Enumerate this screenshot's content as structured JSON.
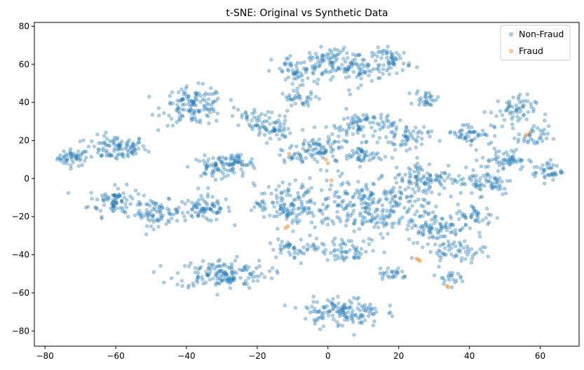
{
  "chart_data": {
    "type": "scatter",
    "title": "t-SNE: Original vs Synthetic Data",
    "xlabel": "",
    "ylabel": "",
    "xlim": [
      -83,
      71
    ],
    "ylim": [
      -88,
      82
    ],
    "xticks": [
      -80,
      -60,
      -40,
      -20,
      0,
      20,
      40,
      60
    ],
    "yticks": [
      -80,
      -60,
      -40,
      -20,
      0,
      20,
      40,
      60,
      80
    ],
    "xtick_labels": [
      "−80",
      "−60",
      "−40",
      "−20",
      "0",
      "20",
      "40",
      "60"
    ],
    "ytick_labels": [
      "−80",
      "−60",
      "−40",
      "−20",
      "0",
      "20",
      "40",
      "60",
      "80"
    ],
    "grid": false,
    "legend_position": "top-right",
    "series": [
      {
        "name": "Non-Fraud",
        "color": "#1f77b4",
        "opacity": 0.35,
        "clusters": [
          {
            "cx": -72,
            "cy": 11,
            "rx": 4,
            "ry": 4,
            "n": 50
          },
          {
            "cx": -60,
            "cy": 16,
            "rx": 8,
            "ry": 6,
            "n": 100
          },
          {
            "cx": -60,
            "cy": -12,
            "rx": 7,
            "ry": 7,
            "n": 85
          },
          {
            "cx": -48,
            "cy": -18,
            "rx": 6,
            "ry": 6,
            "n": 70
          },
          {
            "cx": -35,
            "cy": -16,
            "rx": 7,
            "ry": 6,
            "n": 80
          },
          {
            "cx": -38,
            "cy": 38,
            "rx": 8,
            "ry": 9,
            "n": 130
          },
          {
            "cx": -32,
            "cy": 6,
            "rx": 6,
            "ry": 5,
            "n": 60
          },
          {
            "cx": -26,
            "cy": 8,
            "rx": 5,
            "ry": 5,
            "n": 45
          },
          {
            "cx": -30,
            "cy": -50,
            "rx": 12,
            "ry": 7,
            "n": 150
          },
          {
            "cx": -22,
            "cy": 32,
            "rx": 5,
            "ry": 5,
            "n": 30
          },
          {
            "cx": -16,
            "cy": 26,
            "rx": 5,
            "ry": 6,
            "n": 55
          },
          {
            "cx": -8,
            "cy": 56,
            "rx": 7,
            "ry": 8,
            "n": 60
          },
          {
            "cx": 0,
            "cy": 62,
            "rx": 5,
            "ry": 6,
            "n": 60
          },
          {
            "cx": 8,
            "cy": 58,
            "rx": 7,
            "ry": 8,
            "n": 70
          },
          {
            "cx": 18,
            "cy": 62,
            "rx": 5,
            "ry": 6,
            "n": 60
          },
          {
            "cx": -8,
            "cy": 42,
            "rx": 5,
            "ry": 4,
            "n": 35
          },
          {
            "cx": 10,
            "cy": 28,
            "rx": 8,
            "ry": 7,
            "n": 80
          },
          {
            "cx": -2,
            "cy": 15,
            "rx": 8,
            "ry": 8,
            "n": 90
          },
          {
            "cx": 10,
            "cy": 12,
            "rx": 5,
            "ry": 5,
            "n": 40
          },
          {
            "cx": 22,
            "cy": 22,
            "rx": 6,
            "ry": 6,
            "n": 55
          },
          {
            "cx": 28,
            "cy": 42,
            "rx": 3,
            "ry": 4,
            "n": 30
          },
          {
            "cx": 40,
            "cy": 24,
            "rx": 6,
            "ry": 5,
            "n": 50
          },
          {
            "cx": 52,
            "cy": 35,
            "rx": 6,
            "ry": 8,
            "n": 60
          },
          {
            "cx": 58,
            "cy": 22,
            "rx": 4,
            "ry": 5,
            "n": 35
          },
          {
            "cx": 50,
            "cy": 10,
            "rx": 6,
            "ry": 5,
            "n": 60
          },
          {
            "cx": 62,
            "cy": 4,
            "rx": 4,
            "ry": 5,
            "n": 40
          },
          {
            "cx": 45,
            "cy": -2,
            "rx": 7,
            "ry": 6,
            "n": 60
          },
          {
            "cx": 42,
            "cy": -20,
            "rx": 5,
            "ry": 6,
            "n": 40
          },
          {
            "cx": 28,
            "cy": 0,
            "rx": 10,
            "ry": 8,
            "n": 110
          },
          {
            "cx": 30,
            "cy": -26,
            "rx": 7,
            "ry": 6,
            "n": 70
          },
          {
            "cx": 36,
            "cy": -38,
            "rx": 8,
            "ry": 5,
            "n": 60
          },
          {
            "cx": 10,
            "cy": -15,
            "rx": 18,
            "ry": 14,
            "n": 280
          },
          {
            "cx": -12,
            "cy": -14,
            "rx": 8,
            "ry": 10,
            "n": 110
          },
          {
            "cx": -8,
            "cy": -36,
            "rx": 8,
            "ry": 5,
            "n": 50
          },
          {
            "cx": 6,
            "cy": -38,
            "rx": 7,
            "ry": 5,
            "n": 50
          },
          {
            "cx": 18,
            "cy": -50,
            "rx": 4,
            "ry": 4,
            "n": 25
          },
          {
            "cx": 34,
            "cy": -52,
            "rx": 3,
            "ry": 3,
            "n": 20
          },
          {
            "cx": -10,
            "cy": 12,
            "rx": 3,
            "ry": 3,
            "n": 15
          },
          {
            "cx": 4,
            "cy": -70,
            "rx": 10,
            "ry": 7,
            "n": 140
          }
        ]
      },
      {
        "name": "Fraud",
        "color": "#ff7f0e",
        "opacity": 0.4,
        "points": [
          [
            25,
            -42
          ],
          [
            25.6,
            -42.6
          ],
          [
            26,
            -43.2
          ],
          [
            34,
            -57
          ],
          [
            33.6,
            -56.4
          ],
          [
            -12,
            -26
          ],
          [
            -11.4,
            -25
          ],
          [
            56,
            23
          ],
          [
            57,
            24
          ],
          [
            0,
            8
          ],
          [
            -0.6,
            10
          ],
          [
            1,
            -1
          ],
          [
            -11,
            13
          ]
        ]
      }
    ]
  }
}
